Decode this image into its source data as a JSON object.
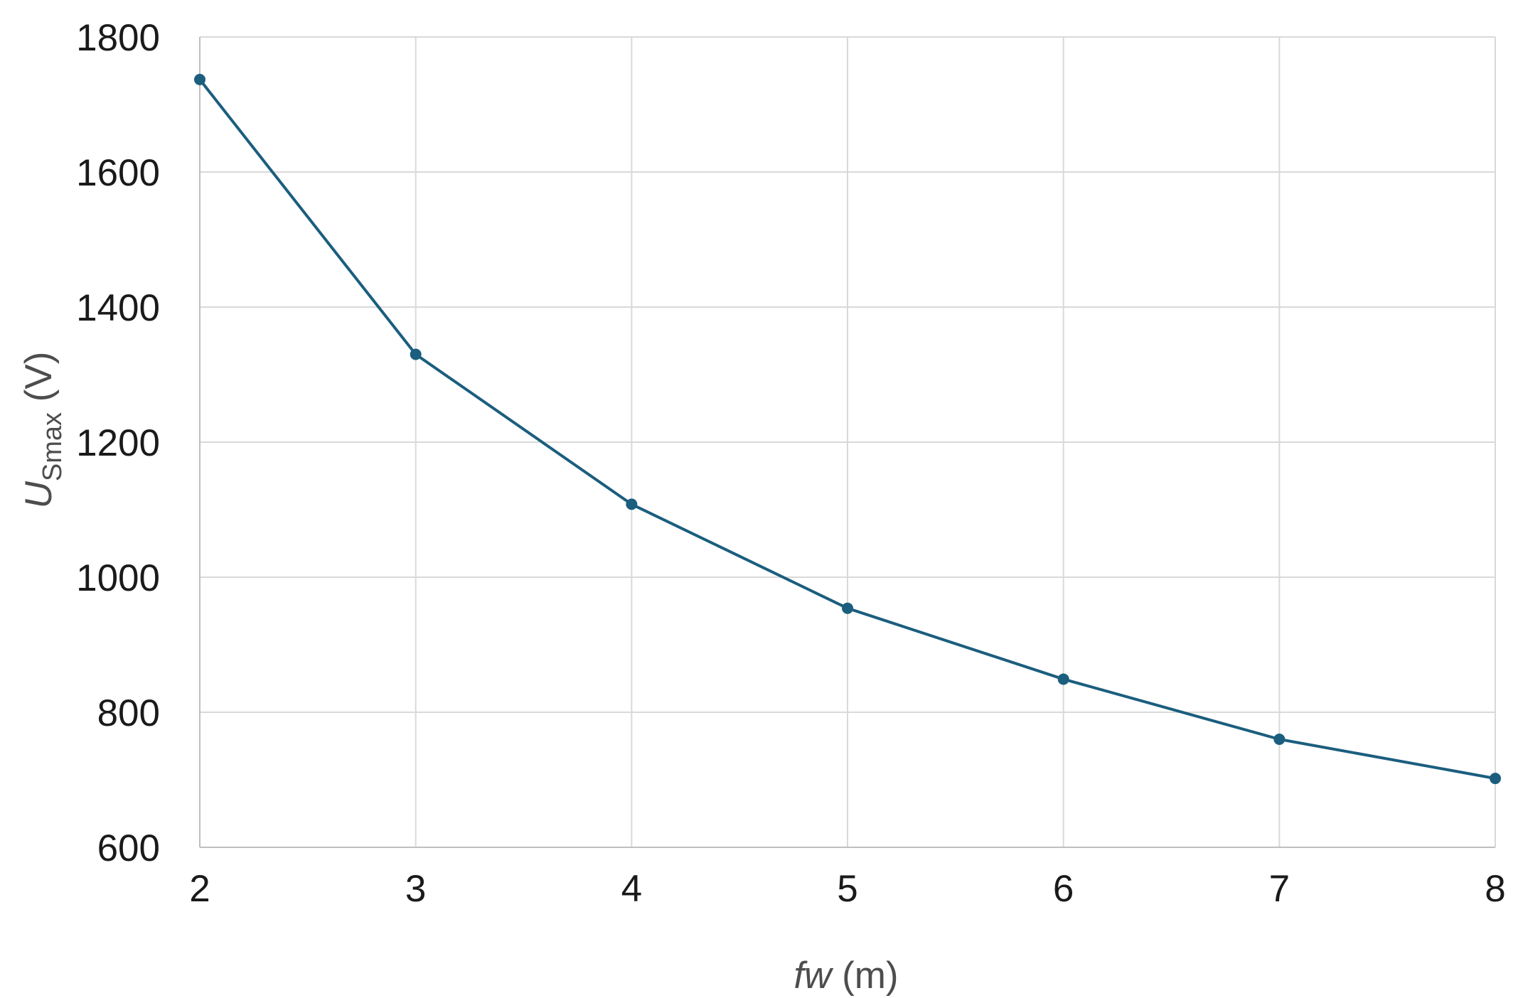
{
  "chart_data": {
    "type": "line",
    "title": "",
    "x": [
      2,
      3,
      4,
      5,
      6,
      7,
      8
    ],
    "series": [
      {
        "values": [
          1737,
          1330,
          1108,
          954,
          849,
          760,
          702
        ],
        "color": "#1b5e7e",
        "marker": "circle"
      }
    ],
    "xlabel": {
      "italic": "fw",
      "rest": " (m)"
    },
    "ylabel": {
      "italic": "U",
      "subscript": "Smax",
      "rest": " (V)"
    },
    "xlim": [
      2,
      8
    ],
    "ylim": [
      600,
      1800
    ],
    "xticks": [
      "2",
      "3",
      "4",
      "5",
      "6",
      "7",
      "8"
    ],
    "yticks": [
      "600",
      "800",
      "1000",
      "1200",
      "1400",
      "1600",
      "1800"
    ],
    "grid": true,
    "legend": "none",
    "colors": {
      "grid": "#d9d9d9",
      "axis": "#bfbfbf",
      "tick_text": "#1a1a1a",
      "axis_title_text": "#4d4d4d"
    }
  }
}
